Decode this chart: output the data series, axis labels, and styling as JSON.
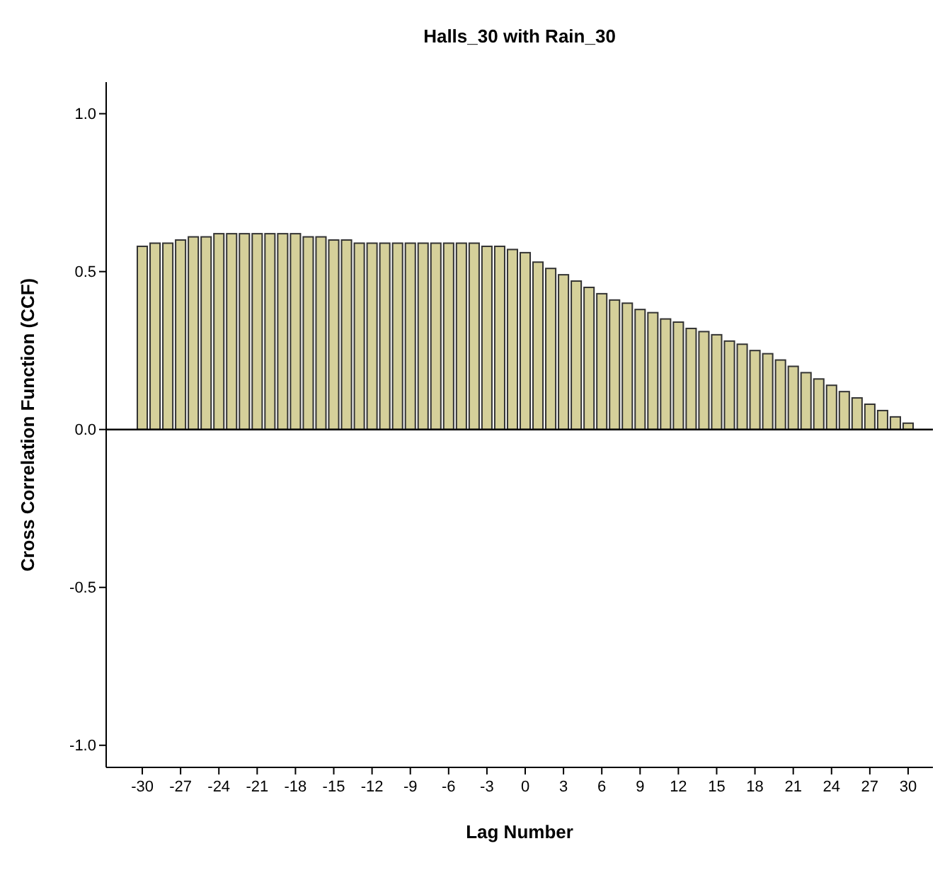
{
  "chart_data": {
    "type": "bar",
    "title": "Halls_30 with Rain_30",
    "xlabel": "Lag Number",
    "ylabel": "Cross Correlation Function (CCF)",
    "categories": [
      "-30",
      null,
      null,
      "-27",
      null,
      null,
      "-24",
      null,
      null,
      "-21",
      null,
      null,
      "-18",
      null,
      null,
      "-15",
      null,
      null,
      "-12",
      null,
      null,
      "-9",
      null,
      null,
      "-6",
      null,
      null,
      "-3",
      null,
      null,
      "0",
      null,
      null,
      "3",
      null,
      null,
      "6",
      null,
      null,
      "9",
      null,
      null,
      "12",
      null,
      null,
      "15",
      null,
      null,
      "18",
      null,
      null,
      "21",
      null,
      null,
      "24",
      null,
      null,
      "27",
      null,
      null,
      "30"
    ],
    "series": [
      {
        "color": "#d5d09a",
        "values": [
          0.58,
          0.59,
          0.59,
          0.6,
          0.61,
          0.61,
          0.62,
          0.62,
          0.62,
          0.62,
          0.62,
          0.62,
          0.62,
          0.61,
          0.61,
          0.6,
          0.6,
          0.59,
          0.59,
          0.59,
          0.59,
          0.59,
          0.59,
          0.59,
          0.59,
          0.59,
          0.59,
          0.58,
          0.58,
          0.57,
          0.56,
          0.53,
          0.51,
          0.49,
          0.47,
          0.45,
          0.43,
          0.41,
          0.4,
          0.38,
          0.37,
          0.35,
          0.34,
          0.32,
          0.31,
          0.3,
          0.28,
          0.27,
          0.25,
          0.24,
          0.22,
          0.2,
          0.18,
          0.16,
          0.14,
          0.12,
          0.1,
          0.08,
          0.06,
          0.04,
          0.02
        ]
      }
    ],
    "ylim": [
      -1.07,
      1.1
    ],
    "yticks": [
      {
        "value": -1,
        "label": "-1.0"
      },
      {
        "value": -0.5,
        "label": "-0.5"
      },
      {
        "value": 0,
        "label": "0.0"
      },
      {
        "value": 0.5,
        "label": "0.5"
      },
      {
        "value": 1,
        "label": "1.0"
      }
    ],
    "ref_lines": [
      {
        "axis": "y",
        "value": 0,
        "color": "#000000"
      }
    ],
    "grid": false
  }
}
